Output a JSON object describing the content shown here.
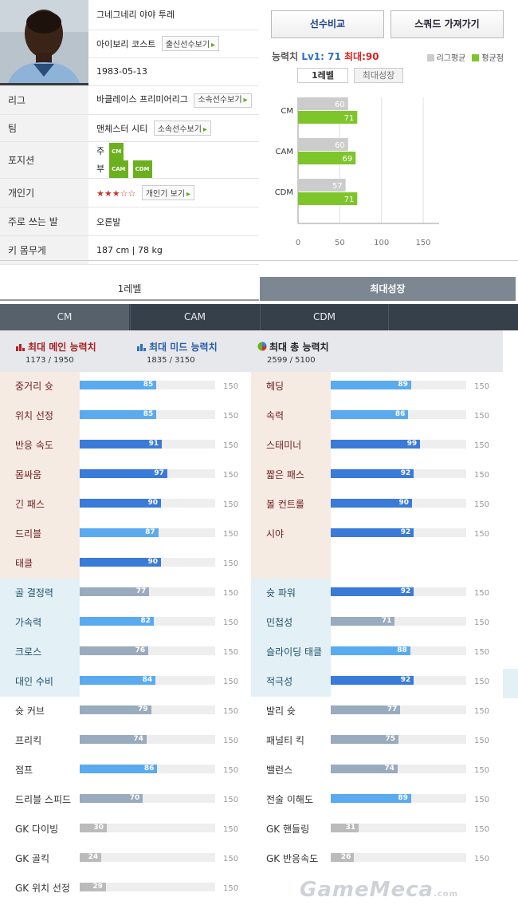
{
  "player": {
    "name": "그네그네리 야야 투레",
    "nation": "아이보리 코스트",
    "nation_btn": "출신선수보기",
    "birth": "1983-05-13",
    "league_label": "리그",
    "league": "바클레이스 프리미어리그",
    "league_btn": "소속선수보기",
    "team_label": "팀",
    "team": "맨체스터 시티",
    "team_btn": "소속선수보기",
    "position_label": "포지션",
    "pos_main_prefix": "주",
    "pos_main": "CM",
    "pos_sub_prefix": "부",
    "pos_sub": [
      "CAM",
      "CDM"
    ],
    "rating_label": "개인기",
    "rating_stars": "★★★☆☆",
    "rating_btn": "개인기 보기",
    "foot_label": "주로 쓰는 발",
    "foot": "오른발",
    "body_label": "키 몸무게",
    "body": "187 cm | 78 kg"
  },
  "buttons": {
    "compare": "선수비교",
    "squad": "스쿼드 가져가기",
    "arrow": "▸"
  },
  "ability": {
    "label": "능력치",
    "lv1": "Lv1: 71",
    "max": "최대:90",
    "legend_league": "리그평균",
    "legend_avg": "평균점",
    "tab_lv1": "1레벨",
    "tab_max": "최대성장"
  },
  "colors": {
    "league_gray": "#cccccc",
    "avg_green": "#7dc52a",
    "bar_light": "#5aaaf0",
    "bar_dark": "#3a7ad8",
    "bar_gray": "#99abbd",
    "bar_short": "#bbbbbb",
    "tab_dark": "#36404b"
  },
  "chart_data": {
    "type": "bar",
    "orientation": "horizontal",
    "categories": [
      "CM",
      "CAM",
      "CDM"
    ],
    "series": [
      {
        "name": "리그평균",
        "values": [
          60,
          60,
          57
        ]
      },
      {
        "name": "평균점",
        "values": [
          71,
          69,
          71
        ]
      }
    ],
    "x_ticks": [
      "0",
      "50",
      "100",
      "150"
    ],
    "xlim": [
      0,
      150
    ],
    "legend": "top-right"
  },
  "level_tabs": [
    "1레벨",
    "최대성장"
  ],
  "position_tabs": [
    "CM",
    "CAM",
    "CDM"
  ],
  "summary": {
    "main_label": "최대 메인 능력치",
    "main_value": "1173 / 1950",
    "mid_label": "최대 미드 능력치",
    "mid_value": "1835 / 3150",
    "total_label": "최대 총 능력치",
    "total_value": "2599 / 5100"
  },
  "stat_max": "150",
  "stats_left": [
    {
      "name": "중거리 슛",
      "value": 85,
      "group": "main",
      "tone": "light"
    },
    {
      "name": "위치 선정",
      "value": 85,
      "group": "main",
      "tone": "light"
    },
    {
      "name": "반응 속도",
      "value": 91,
      "group": "main",
      "tone": "dark"
    },
    {
      "name": "몸싸움",
      "value": 97,
      "group": "main",
      "tone": "dark"
    },
    {
      "name": "긴 패스",
      "value": 90,
      "group": "main",
      "tone": "dark"
    },
    {
      "name": "드리블",
      "value": 87,
      "group": "main",
      "tone": "light"
    },
    {
      "name": "태클",
      "value": 90,
      "group": "main",
      "tone": "dark"
    },
    {
      "name": "골 결정력",
      "value": 77,
      "group": "mid",
      "tone": "gray"
    },
    {
      "name": "가속력",
      "value": 82,
      "group": "mid",
      "tone": "light"
    },
    {
      "name": "크로스",
      "value": 76,
      "group": "mid",
      "tone": "gray"
    },
    {
      "name": "대인 수비",
      "value": 84,
      "group": "mid",
      "tone": "light"
    },
    {
      "name": "슛 커브",
      "value": 79,
      "group": "etc",
      "tone": "gray"
    },
    {
      "name": "프리킥",
      "value": 74,
      "group": "etc",
      "tone": "gray"
    },
    {
      "name": "점프",
      "value": 86,
      "group": "etc",
      "tone": "light"
    },
    {
      "name": "드리블 스피드",
      "value": 70,
      "group": "etc",
      "tone": "gray"
    },
    {
      "name": "GK 다이빙",
      "value": 30,
      "group": "etc",
      "tone": "short"
    },
    {
      "name": "GK 골킥",
      "value": 24,
      "group": "etc",
      "tone": "short"
    },
    {
      "name": "GK 위치 선정",
      "value": 29,
      "group": "etc",
      "tone": "short"
    }
  ],
  "stats_right": [
    {
      "name": "헤딩",
      "value": 89,
      "group": "main",
      "tone": "light"
    },
    {
      "name": "속력",
      "value": 86,
      "group": "main",
      "tone": "light"
    },
    {
      "name": "스태미너",
      "value": 99,
      "group": "main",
      "tone": "dark"
    },
    {
      "name": "짧은 패스",
      "value": 92,
      "group": "main",
      "tone": "dark"
    },
    {
      "name": "볼 컨트롤",
      "value": 90,
      "group": "main",
      "tone": "dark"
    },
    {
      "name": "시야",
      "value": 92,
      "group": "main",
      "tone": "dark"
    },
    {
      "name": "",
      "value": null,
      "group": "main",
      "tone": "none"
    },
    {
      "name": "슛 파워",
      "value": 92,
      "group": "mid",
      "tone": "dark"
    },
    {
      "name": "민첩성",
      "value": 71,
      "group": "mid",
      "tone": "gray"
    },
    {
      "name": "슬라이딩 태클",
      "value": 88,
      "group": "mid",
      "tone": "light"
    },
    {
      "name": "적극성",
      "value": 92,
      "group": "mid",
      "tone": "dark"
    },
    {
      "name": "발리 슛",
      "value": 77,
      "group": "etc",
      "tone": "gray"
    },
    {
      "name": "패널티 킥",
      "value": 75,
      "group": "etc",
      "tone": "gray"
    },
    {
      "name": "밸런스",
      "value": 74,
      "group": "etc",
      "tone": "gray"
    },
    {
      "name": "전술 이해도",
      "value": 89,
      "group": "etc",
      "tone": "light"
    },
    {
      "name": "GK 핸들링",
      "value": 31,
      "group": "etc",
      "tone": "short"
    },
    {
      "name": "GK 반응속도",
      "value": 26,
      "group": "etc",
      "tone": "short"
    }
  ],
  "watermark": {
    "brand": "GameMeca",
    "suffix": ".com"
  }
}
